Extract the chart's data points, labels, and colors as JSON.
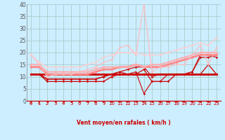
{
  "xlabel": "Vent moyen/en rafales ( km/h )",
  "bg_color": "#cceeff",
  "grid_color": "#aacccc",
  "xlim": [
    -0.5,
    23.5
  ],
  "ylim": [
    0,
    40
  ],
  "yticks": [
    0,
    5,
    10,
    15,
    20,
    25,
    30,
    35,
    40
  ],
  "xticks": [
    0,
    1,
    2,
    3,
    4,
    5,
    6,
    7,
    8,
    9,
    10,
    11,
    12,
    13,
    14,
    15,
    16,
    17,
    18,
    19,
    20,
    21,
    22,
    23
  ],
  "lines": [
    {
      "x": [
        0,
        1,
        2,
        3,
        4,
        5,
        6,
        7,
        8,
        9,
        10,
        11,
        12,
        13,
        14,
        15,
        16,
        17,
        18,
        19,
        20,
        21,
        22,
        23
      ],
      "y": [
        11,
        11,
        11,
        11,
        11,
        11,
        11,
        11,
        11,
        11,
        11,
        11,
        11,
        11,
        11,
        11,
        11,
        11,
        11,
        11,
        11,
        11,
        11,
        11
      ],
      "color": "#cc0000",
      "lw": 2.0,
      "marker": "D",
      "ms": 1.8,
      "alpha": 1.0
    },
    {
      "x": [
        0,
        1,
        2,
        3,
        4,
        5,
        6,
        7,
        8,
        9,
        10,
        11,
        12,
        13,
        14,
        15,
        16,
        17,
        18,
        19,
        20,
        21,
        22,
        23
      ],
      "y": [
        11,
        11,
        8,
        8,
        8,
        8,
        8,
        8,
        8,
        8,
        10,
        11,
        11,
        11,
        13,
        8,
        8,
        8,
        11,
        11,
        11,
        11,
        15,
        11
      ],
      "color": "#cc0000",
      "lw": 0.9,
      "marker": "D",
      "ms": 1.8,
      "alpha": 1.0
    },
    {
      "x": [
        0,
        1,
        2,
        3,
        4,
        5,
        6,
        7,
        8,
        9,
        10,
        11,
        12,
        13,
        14,
        15,
        16,
        17,
        18,
        19,
        20,
        21,
        22,
        23
      ],
      "y": [
        11,
        11,
        9,
        9,
        9,
        9,
        9,
        9,
        9,
        10,
        11,
        12,
        13,
        14,
        14,
        10,
        11,
        11,
        11,
        11,
        12,
        18,
        18,
        19
      ],
      "color": "#cc0000",
      "lw": 1.0,
      "marker": "D",
      "ms": 1.8,
      "alpha": 0.85
    },
    {
      "x": [
        0,
        1,
        2,
        3,
        4,
        5,
        6,
        7,
        8,
        9,
        10,
        11,
        12,
        13,
        14,
        15,
        16,
        17,
        18,
        19,
        20,
        21,
        22,
        23
      ],
      "y": [
        11,
        11,
        9,
        9,
        9,
        9,
        9,
        9,
        9,
        10,
        11,
        12,
        11,
        12,
        3,
        8,
        8,
        11,
        11,
        11,
        12,
        19,
        19,
        18
      ],
      "color": "#cc0000",
      "lw": 0.9,
      "marker": "D",
      "ms": 1.8,
      "alpha": 0.9
    },
    {
      "x": [
        0,
        1,
        2,
        3,
        4,
        5,
        6,
        7,
        8,
        9,
        10,
        11,
        12,
        13,
        14,
        15,
        16,
        17,
        18,
        19,
        20,
        21,
        22,
        23
      ],
      "y": [
        14,
        14,
        11,
        11,
        11,
        11,
        11,
        11,
        12,
        13,
        13,
        14,
        14,
        15,
        14,
        14,
        14,
        15,
        16,
        17,
        18,
        19,
        19,
        19
      ],
      "color": "#ff8888",
      "lw": 2.0,
      "marker": "D",
      "ms": 1.8,
      "alpha": 1.0
    },
    {
      "x": [
        0,
        1,
        2,
        3,
        4,
        5,
        6,
        7,
        8,
        9,
        10,
        11,
        12,
        13,
        14,
        15,
        16,
        17,
        18,
        19,
        20,
        21,
        22,
        23
      ],
      "y": [
        15,
        15,
        12,
        12,
        12,
        12,
        12,
        12,
        13,
        14,
        14,
        14,
        14,
        15,
        14,
        15,
        15,
        16,
        17,
        18,
        19,
        20,
        20,
        20
      ],
      "color": "#ffaaaa",
      "lw": 1.5,
      "marker": "D",
      "ms": 1.8,
      "alpha": 0.9
    },
    {
      "x": [
        0,
        1,
        2,
        3,
        4,
        5,
        6,
        7,
        8,
        9,
        10,
        11,
        12,
        13,
        14,
        15,
        16,
        17,
        18,
        19,
        20,
        21,
        22,
        23
      ],
      "y": [
        19,
        15,
        10,
        11,
        11,
        11,
        12,
        13,
        14,
        16,
        17,
        22,
        23,
        19,
        40,
        12,
        14,
        14,
        15,
        15,
        19,
        23,
        15,
        22
      ],
      "color": "#ffbbbb",
      "lw": 1.0,
      "marker": "D",
      "ms": 1.8,
      "alpha": 0.85
    },
    {
      "x": [
        0,
        1,
        2,
        3,
        4,
        5,
        6,
        7,
        8,
        9,
        10,
        11,
        12,
        13,
        14,
        15,
        16,
        17,
        18,
        19,
        20,
        21,
        22,
        23
      ],
      "y": [
        19,
        16,
        14,
        14,
        14,
        14,
        14,
        15,
        16,
        18,
        19,
        20,
        20,
        20,
        19,
        19,
        19,
        20,
        21,
        22,
        23,
        24,
        23,
        26
      ],
      "color": "#ffcccc",
      "lw": 1.2,
      "marker": "D",
      "ms": 1.8,
      "alpha": 0.8
    }
  ],
  "arrow_angles": [
    180,
    180,
    210,
    225,
    210,
    225,
    225,
    270,
    270,
    270,
    270,
    270,
    270,
    315,
    270,
    315,
    315,
    270,
    270,
    270,
    270,
    270,
    270,
    270
  ]
}
